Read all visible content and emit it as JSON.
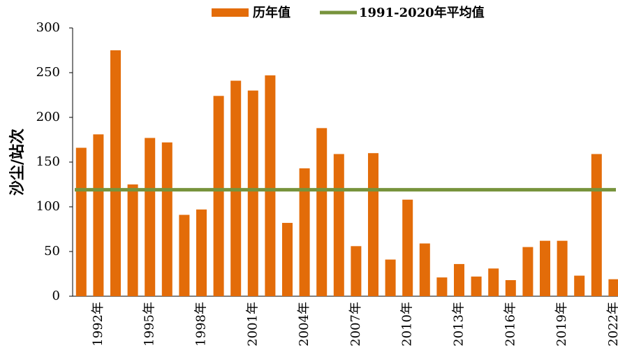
{
  "chart_data": {
    "type": "bar",
    "y_label": "沙尘/站次",
    "categories": [
      null,
      "1992年",
      null,
      null,
      "1995年",
      null,
      null,
      "1998年",
      null,
      null,
      "2001年",
      null,
      null,
      "2004年",
      null,
      null,
      "2007年",
      null,
      null,
      "2010年",
      null,
      null,
      "2013年",
      null,
      null,
      "2016年",
      null,
      null,
      "2019年",
      null,
      null,
      "2022年"
    ],
    "series": [
      {
        "name": "历年值",
        "color": "#e36c09",
        "values": [
          166,
          181,
          275,
          125,
          177,
          172,
          91,
          97,
          224,
          241,
          230,
          247,
          82,
          143,
          188,
          159,
          56,
          160,
          41,
          108,
          59,
          21,
          36,
          22,
          31,
          18,
          55,
          62,
          62,
          23,
          159,
          19
        ]
      }
    ],
    "reference_lines": [
      {
        "name": "1991-2020年平均值",
        "color": "#77933c",
        "value": 119
      }
    ],
    "ylim": [
      0,
      300
    ],
    "yticks": [
      0,
      50,
      100,
      150,
      200,
      250,
      300
    ],
    "grid": false,
    "legend": "top"
  }
}
